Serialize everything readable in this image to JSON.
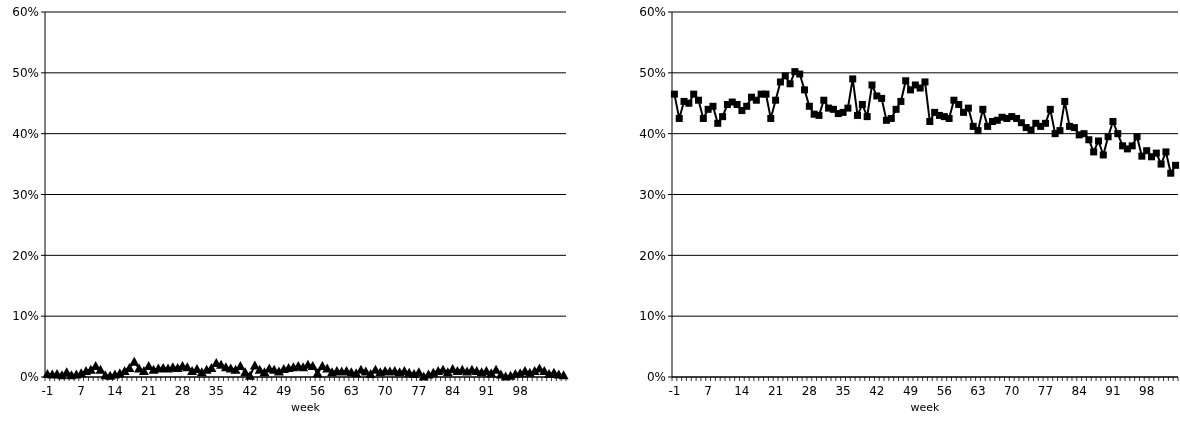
{
  "chart_data": [
    {
      "type": "line",
      "xlabel": "week",
      "marker": "triangle",
      "grid": "y",
      "categories": [
        "-1",
        null,
        null,
        null,
        null,
        null,
        null,
        "7",
        null,
        null,
        null,
        null,
        null,
        null,
        "14",
        null,
        null,
        null,
        null,
        null,
        null,
        "21",
        null,
        null,
        null,
        null,
        null,
        null,
        "28",
        null,
        null,
        null,
        null,
        null,
        null,
        "35",
        null,
        null,
        null,
        null,
        null,
        null,
        "42",
        null,
        null,
        null,
        null,
        null,
        null,
        "49",
        null,
        null,
        null,
        null,
        null,
        null,
        "56",
        null,
        null,
        null,
        null,
        null,
        null,
        "63",
        null,
        null,
        null,
        null,
        null,
        null,
        "70",
        null,
        null,
        null,
        null,
        null,
        null,
        "77",
        null,
        null,
        null,
        null,
        null,
        null,
        "84",
        null,
        null,
        null,
        null,
        null,
        null,
        "91",
        null,
        null,
        null,
        null,
        null,
        null,
        "98",
        null,
        null,
        null,
        null,
        null,
        null,
        null,
        null,
        null
      ],
      "series": [
        {
          "color": "#000000",
          "values": [
            0.5,
            0.4,
            0.5,
            0.3,
            0.8,
            0.3,
            0.4,
            0.6,
            1.0,
            1.2,
            1.8,
            1.2,
            0.3,
            0.2,
            0.4,
            0.6,
            1.0,
            1.5,
            2.5,
            1.4,
            1.0,
            1.8,
            1.2,
            1.4,
            1.5,
            1.4,
            1.6,
            1.5,
            1.8,
            1.6,
            1.0,
            1.3,
            0.8,
            1.2,
            1.5,
            2.3,
            2.0,
            1.6,
            1.4,
            1.2,
            1.8,
            0.8,
            0.2,
            1.9,
            1.2,
            0.8,
            1.4,
            1.2,
            0.9,
            1.3,
            1.5,
            1.6,
            1.8,
            1.6,
            2.0,
            1.8,
            0.6,
            1.8,
            1.4,
            0.8,
            1.0,
            0.9,
            1.0,
            0.8,
            0.6,
            1.2,
            0.9,
            0.5,
            1.2,
            0.8,
            1.0,
            0.9,
            1.0,
            0.8,
            1.0,
            0.7,
            0.5,
            0.8,
            0.1,
            0.4,
            0.7,
            1.0,
            1.2,
            0.8,
            1.3,
            1.0,
            1.2,
            0.9,
            1.2,
            1.0,
            0.8,
            1.0,
            0.6,
            1.2,
            0.4,
            0.1,
            0.2,
            0.5,
            0.6,
            1.0,
            0.7,
            1.0,
            1.4,
            1.0,
            0.5,
            0.7,
            0.4,
            0.3
          ]
        }
      ],
      "ylim": [
        0,
        60
      ],
      "yticks": [
        {
          "value": 0,
          "label": "0%"
        },
        {
          "value": 10,
          "label": "10%"
        },
        {
          "value": 20,
          "label": "20%"
        },
        {
          "value": 30,
          "label": "30%"
        },
        {
          "value": 40,
          "label": "40%"
        },
        {
          "value": 50,
          "label": "50%"
        },
        {
          "value": 60,
          "label": "60%"
        }
      ]
    },
    {
      "type": "line",
      "xlabel": "week",
      "marker": "square",
      "grid": "y",
      "categories": [
        "-1",
        null,
        null,
        null,
        null,
        null,
        null,
        "7",
        null,
        null,
        null,
        null,
        null,
        null,
        "14",
        null,
        null,
        null,
        null,
        null,
        null,
        "21",
        null,
        null,
        null,
        null,
        null,
        null,
        "28",
        null,
        null,
        null,
        null,
        null,
        null,
        "35",
        null,
        null,
        null,
        null,
        null,
        null,
        "42",
        null,
        null,
        null,
        null,
        null,
        null,
        "49",
        null,
        null,
        null,
        null,
        null,
        null,
        "56",
        null,
        null,
        null,
        null,
        null,
        null,
        "63",
        null,
        null,
        null,
        null,
        null,
        null,
        "70",
        null,
        null,
        null,
        null,
        null,
        null,
        "77",
        null,
        null,
        null,
        null,
        null,
        null,
        "84",
        null,
        null,
        null,
        null,
        null,
        null,
        "91",
        null,
        null,
        null,
        null,
        null,
        null,
        "98",
        null,
        null,
        null,
        null,
        null,
        null
      ],
      "series": [
        {
          "color": "#000000",
          "values": [
            46.5,
            42.5,
            45.3,
            45,
            46.5,
            45.5,
            42.5,
            44,
            44.5,
            41.7,
            42.8,
            44.8,
            45.2,
            44.8,
            43.8,
            44.5,
            46,
            45.5,
            46.5,
            46.5,
            42.5,
            45.5,
            48.5,
            49.5,
            48.2,
            50.2,
            49.8,
            47.2,
            44.5,
            43.2,
            43,
            45.5,
            44.2,
            44,
            43.3,
            43.5,
            44.2,
            49,
            43,
            44.8,
            42.8,
            48,
            46.2,
            45.8,
            42.2,
            42.5,
            44,
            45.3,
            48.7,
            47.2,
            48,
            47.5,
            48.5,
            42,
            43.5,
            43,
            42.8,
            42.5,
            45.5,
            44.8,
            43.5,
            44.2,
            41.2,
            40.5,
            44,
            41.2,
            42,
            42.2,
            42.7,
            42.5,
            42.8,
            42.5,
            41.8,
            41,
            40.6,
            41.7,
            41.2,
            41.7,
            44,
            40,
            40.5,
            45.3,
            41.2,
            41,
            39.8,
            40,
            39,
            37,
            38.8,
            36.5,
            39.5,
            42,
            40,
            38,
            37.5,
            38,
            39.5,
            36.3,
            37.2,
            36.2,
            36.8,
            35,
            37,
            33.5,
            34.8
          ]
        }
      ],
      "ylim": [
        0,
        60
      ],
      "yticks": [
        {
          "value": 0,
          "label": "0%"
        },
        {
          "value": 10,
          "label": "10%"
        },
        {
          "value": 20,
          "label": "20%"
        },
        {
          "value": 30,
          "label": "30%"
        },
        {
          "value": 40,
          "label": "40%"
        },
        {
          "value": 50,
          "label": "50%"
        },
        {
          "value": 60,
          "label": "60%"
        }
      ]
    }
  ]
}
